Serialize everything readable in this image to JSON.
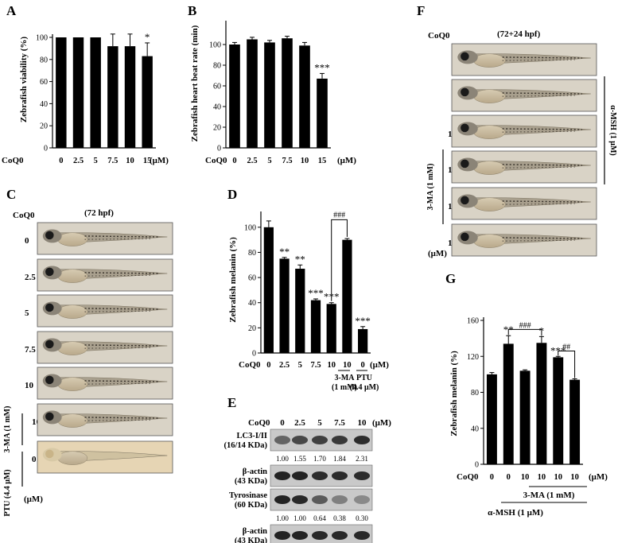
{
  "figure": {
    "panel_letters": [
      "A",
      "B",
      "C",
      "D",
      "E",
      "F",
      "G"
    ],
    "conc_unit": "(μM)",
    "coq0_label": "CoQ0"
  },
  "chart_data": [
    {
      "id": "A",
      "type": "bar",
      "ylabel": "Zebrafish viability (%)",
      "categories": [
        "0",
        "2.5",
        "5",
        "7.5",
        "10",
        "15"
      ],
      "values": [
        100,
        100,
        100,
        92,
        92,
        83
      ],
      "errors": [
        0,
        0,
        0,
        11,
        11,
        12
      ],
      "significance": [
        "",
        "",
        "",
        "",
        "",
        "*"
      ],
      "ylim": [
        0,
        100
      ],
      "yticks": [
        "0",
        "20",
        "40",
        "60",
        "80",
        "100"
      ]
    },
    {
      "id": "B",
      "type": "bar",
      "ylabel": "Zebrafish heart beat rate (min)",
      "categories": [
        "0",
        "2.5",
        "5",
        "7.5",
        "10",
        "15"
      ],
      "values": [
        100,
        105,
        102,
        106,
        99,
        67
      ],
      "errors": [
        2,
        2,
        2,
        2,
        3,
        5
      ],
      "significance": [
        "",
        "",
        "",
        "",
        "",
        "***"
      ],
      "ylim": [
        0,
        120
      ],
      "yticks": [
        "0",
        "20",
        "40",
        "60",
        "80",
        "100"
      ]
    },
    {
      "id": "D",
      "type": "bar",
      "ylabel": "Zebrafish melanin (%)",
      "categories": [
        "0",
        "2.5",
        "5",
        "7.5",
        "10",
        "10",
        "0"
      ],
      "values": [
        100,
        75,
        67,
        42,
        39,
        90,
        19
      ],
      "errors": [
        5,
        1,
        3,
        1,
        1,
        1,
        2
      ],
      "significance": [
        "",
        "**",
        "**",
        "***",
        "***",
        "",
        "***"
      ],
      "bracket_label": "###",
      "group_labels": [
        {
          "name": "3-MA",
          "value": "(1 mM)"
        },
        {
          "name": "PTU",
          "value": "(4.4 μM)"
        }
      ],
      "ylim": [
        0,
        110
      ],
      "yticks": [
        "0",
        "20",
        "40",
        "60",
        "80",
        "100"
      ]
    },
    {
      "id": "G",
      "type": "bar",
      "ylabel": "Zebrafish melanin (%)",
      "categories": [
        "0",
        "0",
        "10",
        "10",
        "10",
        "10"
      ],
      "values": [
        100,
        134,
        104,
        135,
        119,
        94
      ],
      "errors": [
        2,
        9,
        1,
        7,
        1,
        1
      ],
      "significance": [
        "",
        "**",
        "",
        "*",
        "***",
        ""
      ],
      "brackets": [
        "###",
        "##"
      ],
      "group_labels": [
        {
          "name": "3-MA (1 mM)"
        },
        {
          "name": "α-MSH (1 μM)"
        }
      ],
      "ylim": [
        0,
        160
      ],
      "yticks": [
        "0",
        "40",
        "80",
        "120",
        "160"
      ]
    }
  ],
  "panel_c": {
    "title": "(72 hpf)",
    "rows": [
      "0",
      "2.5",
      "5",
      "7.5",
      "10",
      "10",
      "0"
    ],
    "group1": "3-MA (1 mM)",
    "group2": "PTU (4.4 μM)"
  },
  "panel_f": {
    "title": "(72+24 hpf)",
    "rows": [
      "0",
      "0",
      "10",
      "10",
      "10",
      "10"
    ],
    "unit_row": "(μM)",
    "group_right": "α-MSH (1 μM)",
    "group_left": "3-MA (1 mM)"
  },
  "panel_e": {
    "conc": [
      "0",
      "2.5",
      "5",
      "7.5",
      "10"
    ],
    "blots": [
      {
        "name": "LC3-I/II",
        "size": "(16/14 KDa)",
        "quant": [
          "1.00",
          "1.55",
          "1.70",
          "1.84",
          "2.31"
        ]
      },
      {
        "name": "β-actin",
        "size": "(43 KDa)",
        "quant": []
      },
      {
        "name": "Tyrosinase",
        "size": "(60 KDa)",
        "quant": [
          "1.00",
          "1.00",
          "0.64",
          "0.38",
          "0.30"
        ]
      },
      {
        "name": "β-actin",
        "size": "(43 KDa)",
        "quant": []
      }
    ]
  }
}
